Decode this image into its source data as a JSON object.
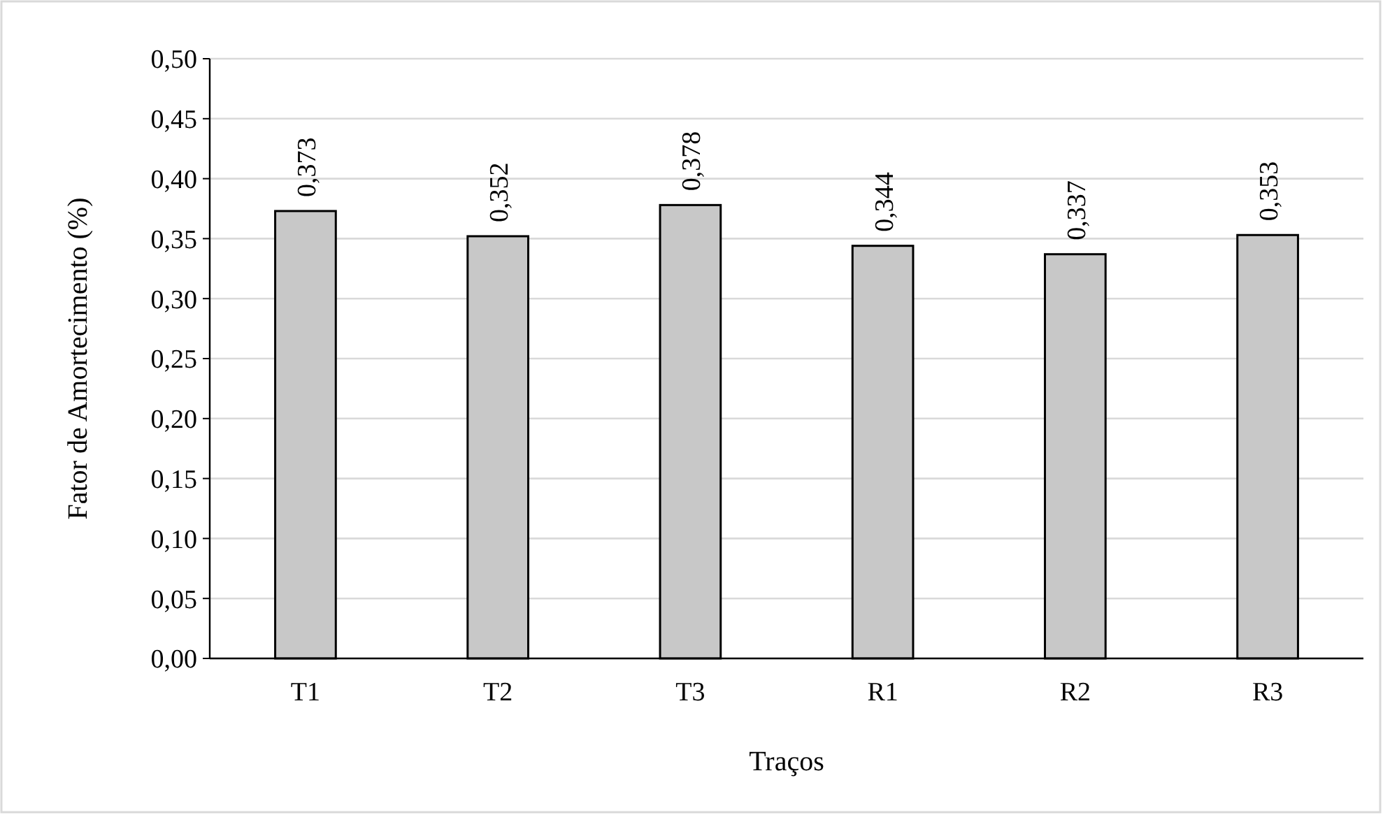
{
  "chart_data": {
    "type": "bar",
    "xlabel": "Traços",
    "ylabel": "Fator de Amortecimento (%)",
    "categories": [
      "T1",
      "T2",
      "T3",
      "R1",
      "R2",
      "R3"
    ],
    "values": [
      0.373,
      0.352,
      0.378,
      0.344,
      0.337,
      0.353
    ],
    "value_labels": [
      "0,373",
      "0,352",
      "0,378",
      "0,344",
      "0,337",
      "0,353"
    ],
    "color": "#c8c8c8",
    "ylim": [
      0,
      0.5
    ],
    "yticks": [
      {
        "value": 0,
        "label": "0,00"
      },
      {
        "value": 0.05,
        "label": "0,05"
      },
      {
        "value": 0.1,
        "label": "0,10"
      },
      {
        "value": 0.15,
        "label": "0,15"
      },
      {
        "value": 0.2,
        "label": "0,20"
      },
      {
        "value": 0.25,
        "label": "0,25"
      },
      {
        "value": 0.3,
        "label": "0,30"
      },
      {
        "value": 0.35,
        "label": "0,35"
      },
      {
        "value": 0.4,
        "label": "0,40"
      },
      {
        "value": 0.45,
        "label": "0,45"
      },
      {
        "value": 0.5,
        "label": "0,50"
      }
    ],
    "grid": "y"
  }
}
